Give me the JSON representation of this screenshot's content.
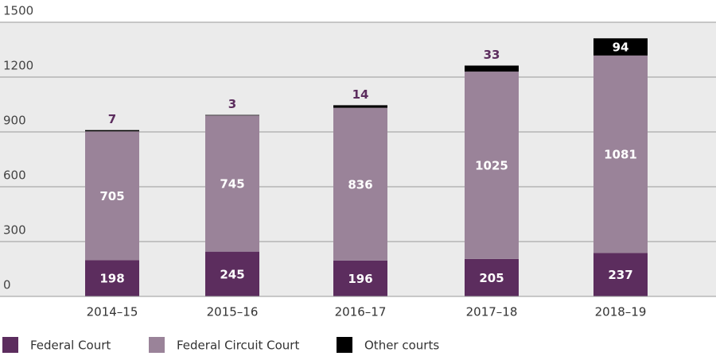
{
  "chart_data": {
    "type": "stacked-bar",
    "categories": [
      "2014–15",
      "2015–16",
      "2016–17",
      "2017–18",
      "2018–19"
    ],
    "series": [
      {
        "name": "Federal Court",
        "color": "#5c2d5e",
        "values": [
          198,
          245,
          196,
          205,
          237
        ]
      },
      {
        "name": "Federal Circuit Court",
        "color": "#9a8399",
        "values": [
          705,
          745,
          836,
          1025,
          1081
        ]
      },
      {
        "name": "Other courts",
        "color": "#000000",
        "values": [
          7,
          3,
          14,
          33,
          94
        ]
      }
    ],
    "ylim": [
      0,
      1500
    ],
    "yticks": [
      0,
      300,
      600,
      900,
      1200,
      1500
    ],
    "grid": true,
    "legend": "bottom"
  }
}
